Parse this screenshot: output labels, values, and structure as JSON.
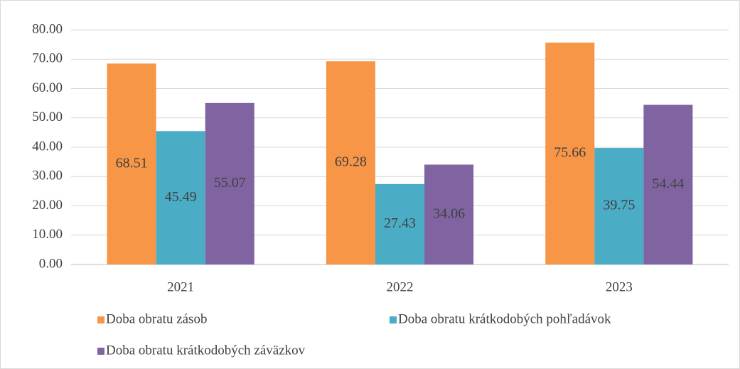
{
  "chart_data": {
    "type": "bar",
    "categories": [
      "2021",
      "2022",
      "2023"
    ],
    "series": [
      {
        "name": "Doba obratu zásob",
        "color": "#f79646",
        "values": [
          68.51,
          69.28,
          75.66
        ]
      },
      {
        "name": "Doba obratu krátkodobých pohľadávok",
        "color": "#4bacc6",
        "values": [
          45.49,
          27.43,
          39.75
        ]
      },
      {
        "name": "Doba obratu krátkodobých záväzkov",
        "color": "#8064a2",
        "values": [
          55.07,
          34.06,
          54.44
        ]
      }
    ],
    "ylim": [
      0,
      80
    ],
    "yticks": [
      {
        "value": 0,
        "label": "0.00"
      },
      {
        "value": 10,
        "label": "10.00"
      },
      {
        "value": 20,
        "label": "20.00"
      },
      {
        "value": 30,
        "label": "30.00"
      },
      {
        "value": 40,
        "label": "40.00"
      },
      {
        "value": 50,
        "label": "50.00"
      },
      {
        "value": 60,
        "label": "60.00"
      },
      {
        "value": 70,
        "label": "70.00"
      },
      {
        "value": 80,
        "label": "80.00"
      }
    ],
    "grid": true,
    "legend": "bottom"
  }
}
